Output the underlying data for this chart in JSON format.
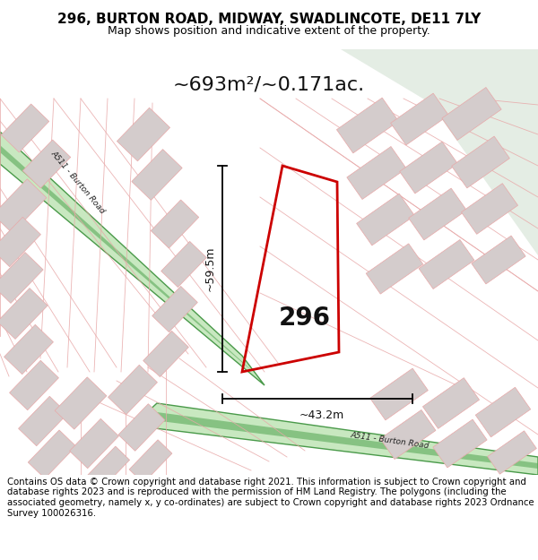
{
  "title": "296, BURTON ROAD, MIDWAY, SWADLINCOTE, DE11 7LY",
  "subtitle": "Map shows position and indicative extent of the property.",
  "area_label": "~693m²/~0.171ac.",
  "number_label": "296",
  "dim_height": "~59.5m",
  "dim_width": "~43.2m",
  "footer": "Contains OS data © Crown copyright and database right 2021. This information is subject to Crown copyright and database rights 2023 and is reproduced with the permission of HM Land Registry. The polygons (including the associated geometry, namely x, y co-ordinates) are subject to Crown copyright and database rights 2023 Ordnance Survey 100026316.",
  "map_bg": "#f5f0f0",
  "road_green_fill": "#c8e8c0",
  "road_green_edge": "#4a9a4a",
  "road_green_center": "#5aaa5a",
  "plot_red": "#cc0000",
  "building_gray": "#d4cccc",
  "building_edge": "#e8a8a8",
  "line_pink": "#e8a8a8",
  "top_right_green": "#e4ede4",
  "title_fontsize": 11,
  "subtitle_fontsize": 9,
  "area_fontsize": 16,
  "number_fontsize": 20,
  "dim_fontsize": 9,
  "footer_fontsize": 7.3,
  "road_label_fontsize": 6.5
}
